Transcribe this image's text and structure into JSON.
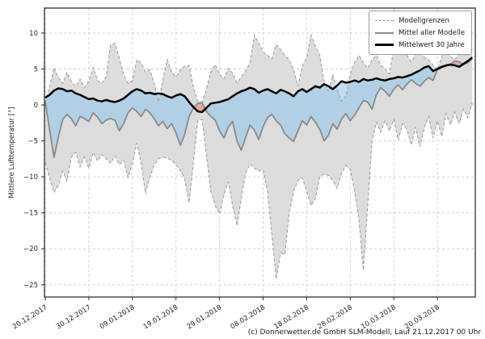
{
  "footer": "(c) Donnerwetter.de GmbH SLM-Modell, Lauf 21.12.2017 00 Uhr",
  "colors": {
    "band_fill": "#dcdcdc",
    "band_edge": "#a3a3a3",
    "model_mean_line": "#8a8a8a",
    "mean_30y_line": "#000000",
    "colder_fill": "rgba(150,200,235,0.6)",
    "warmer_fill": "rgba(235,130,110,0.55)",
    "grid": "#cccccc"
  },
  "chart_data": {
    "type": "line",
    "title": "",
    "xlabel": "",
    "ylabel": "Mittlere Lufttemperatur [°]",
    "ylim": [
      -26.7,
      13.5
    ],
    "yticks": [
      10,
      5,
      0,
      -5,
      -10,
      -15,
      -20,
      -25
    ],
    "grid": "dashed",
    "legend_position": "upper right",
    "legend": [
      "Modellgrenzen",
      "Mittel aller Modelle",
      "Mittelwert 30 Jahre"
    ],
    "x_unit": "days since 20.12.2017, daily resolution",
    "xtick_days": [
      0,
      10,
      20,
      30,
      40,
      50,
      60,
      70,
      80,
      90
    ],
    "xtick_labels": [
      "20.12.2017",
      "30.12.2017",
      "09.01.2018",
      "19.01.2018",
      "29.01.2018",
      "08.02.2018",
      "18.02.2018",
      "28.02.2018",
      "10.03.2018",
      "20.03.2018"
    ],
    "series": [
      {
        "name": "Modellgrenzen (obere Grenze)",
        "role": "upper_bound",
        "style": "dashed-gray",
        "values": [
          0.3,
          2.5,
          5.2,
          3.8,
          3.0,
          4.5,
          3.2,
          2.6,
          3.6,
          2.4,
          3.3,
          5.2,
          3.4,
          3.0,
          4.0,
          8.3,
          8.6,
          6.5,
          4.2,
          3.0,
          3.4,
          6.3,
          5.8,
          4.6,
          4.9,
          3.0,
          0.4,
          3.5,
          6.3,
          4.6,
          3.9,
          4.9,
          5.4,
          5.5,
          2.4,
          0.5,
          0.4,
          2.2,
          4.6,
          5.6,
          4.3,
          3.6,
          5.1,
          4.4,
          3.1,
          3.9,
          4.7,
          5.9,
          9.7,
          8.6,
          7.4,
          6.9,
          6.4,
          8.4,
          7.7,
          6.9,
          6.3,
          4.9,
          2.6,
          5.4,
          6.6,
          9.7,
          8.2,
          6.9,
          3.2,
          1.8,
          4.2,
          2.2,
          0.5,
          1.2,
          4.2,
          5.9,
          6.9,
          5.9,
          5.1,
          6.3,
          6.9,
          5.5,
          5.1,
          4.3,
          7.9,
          9.2,
          8.9,
          6.9,
          6.0,
          7.0,
          7.7,
          6.6,
          6.3,
          5.5,
          4.9,
          6.7,
          7.5,
          6.7,
          6.3,
          7.1,
          7.7,
          7.3,
          8.0
        ]
      },
      {
        "name": "Modellgrenzen (untere Grenze)",
        "role": "lower_bound",
        "style": "dashed-gray",
        "values": [
          -8.0,
          -10.2,
          -12.2,
          -11.2,
          -9.2,
          -10.6,
          -7.2,
          -6.6,
          -8.6,
          -7.2,
          -8.8,
          -6.6,
          -7.8,
          -6.9,
          -7.5,
          -8.1,
          -7.1,
          -8.3,
          -7.7,
          -10.1,
          -8.1,
          -5.3,
          -8.1,
          -12.3,
          -10.1,
          -8.3,
          -7.5,
          -7.3,
          -7.4,
          -7.7,
          -8.3,
          -9.1,
          -10.3,
          -13.6,
          -8.0,
          -2.2,
          -2.0,
          -7.0,
          -12.0,
          -14.0,
          -15.2,
          -12.5,
          -10.7,
          -14.0,
          -16.8,
          -13.0,
          -9.5,
          -8.2,
          -8.8,
          -9.2,
          -9.0,
          -12.0,
          -18.0,
          -24.2,
          -20.6,
          -20.8,
          -15.0,
          -12.0,
          -10.5,
          -10.1,
          -12.0,
          -14.0,
          -13.0,
          -10.0,
          -9.6,
          -9.8,
          -10.5,
          -11.6,
          -9.5,
          -8.4,
          -9.0,
          -12.0,
          -16.0,
          -23.0,
          -14.0,
          -5.0,
          -2.4,
          -3.8,
          -2.2,
          -3.6,
          -2.0,
          -4.9,
          -2.6,
          -3.4,
          -5.6,
          -3.1,
          -5.8,
          -3.2,
          -1.6,
          -4.6,
          -2.2,
          -4.4,
          -1.2,
          -2.8,
          -1.0,
          -2.6,
          -0.6,
          -1.8,
          0.3
        ]
      },
      {
        "name": "Mittel aller Modelle",
        "role": "model_mean",
        "style": "solid-gray",
        "values": [
          0.5,
          -3.5,
          -7.3,
          -4.5,
          -2.0,
          -1.3,
          -1.9,
          -2.9,
          -1.6,
          -1.9,
          -2.3,
          -1.1,
          -1.7,
          -2.6,
          -2.1,
          -1.9,
          -2.1,
          -3.6,
          -2.6,
          -1.1,
          -0.4,
          -0.9,
          -1.6,
          -0.6,
          -1.1,
          -1.9,
          -2.9,
          -2.3,
          -3.3,
          -2.6,
          -3.9,
          -5.6,
          -4.1,
          -1.6,
          -0.4,
          0.2,
          0.3,
          -0.9,
          -1.6,
          -2.1,
          -3.6,
          -4.6,
          -3.1,
          -2.3,
          -5.0,
          -6.3,
          -4.5,
          -2.8,
          -3.5,
          -4.8,
          -3.0,
          -1.8,
          -1.3,
          -2.2,
          -2.8,
          -4.0,
          -4.6,
          -5.1,
          -3.6,
          -2.2,
          -2.8,
          -1.6,
          -2.4,
          -3.4,
          -5.0,
          -4.2,
          -2.6,
          -3.4,
          -2.0,
          -1.2,
          -2.2,
          -1.4,
          -0.4,
          0.6,
          0.4,
          -0.6,
          1.4,
          2.4,
          1.9,
          1.2,
          2.2,
          2.8,
          2.1,
          2.9,
          3.5,
          3.0,
          2.6,
          3.3,
          3.8,
          3.4,
          4.9,
          5.2,
          5.4,
          5.7,
          6.1,
          6.0,
          5.6,
          5.9,
          6.4
        ]
      },
      {
        "name": "Mittelwert 30 Jahre",
        "role": "mean_30y",
        "style": "solid-black-thick",
        "values": [
          1.0,
          1.4,
          2.0,
          2.3,
          2.2,
          1.9,
          2.0,
          1.6,
          1.4,
          1.1,
          0.8,
          0.9,
          0.6,
          0.5,
          0.7,
          0.5,
          0.4,
          0.6,
          0.9,
          1.4,
          1.9,
          2.2,
          2.0,
          1.6,
          1.7,
          1.5,
          1.6,
          1.5,
          1.2,
          1.0,
          1.3,
          1.5,
          1.2,
          0.4,
          -0.3,
          -0.9,
          -1.0,
          -0.4,
          0.2,
          0.3,
          0.4,
          0.6,
          0.8,
          1.2,
          1.6,
          1.9,
          2.1,
          2.4,
          2.2,
          1.7,
          2.0,
          2.2,
          1.9,
          1.6,
          2.1,
          1.9,
          1.6,
          1.2,
          1.9,
          2.2,
          1.8,
          2.2,
          2.6,
          2.4,
          2.9,
          2.6,
          2.2,
          2.7,
          3.3,
          3.1,
          3.2,
          3.4,
          3.2,
          3.6,
          3.4,
          3.5,
          3.7,
          3.5,
          3.4,
          3.6,
          3.7,
          3.9,
          3.8,
          4.0,
          4.2,
          4.5,
          4.8,
          5.2,
          5.4,
          4.7,
          5.0,
          5.3,
          5.5,
          5.6,
          5.5,
          5.3,
          5.7,
          6.1,
          6.6
        ]
      }
    ]
  }
}
